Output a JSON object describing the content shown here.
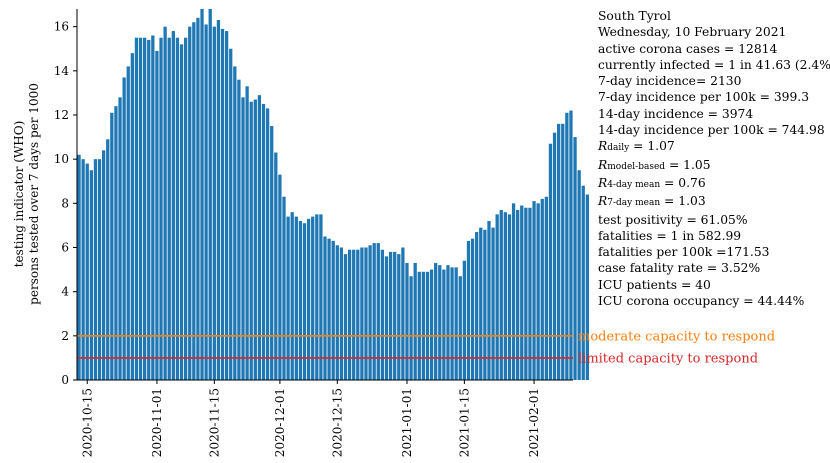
{
  "chart_data": {
    "type": "bar",
    "ylabel_lines": [
      "testing indicator (WHO)",
      "persons tested over 7 days per 1000"
    ],
    "ylim": [
      0,
      16.8
    ],
    "yticks": [
      0,
      2,
      4,
      6,
      8,
      10,
      12,
      14,
      16
    ],
    "x_start": "2020-10-13",
    "x_end": "2021-02-10",
    "xticks": [
      "2020-10-15",
      "2020-11-01",
      "2020-11-15",
      "2020-12-01",
      "2020-12-15",
      "2021-01-01",
      "2021-01-15",
      "2021-02-01"
    ],
    "bar_color": "#1f77b4",
    "values": [
      10.2,
      10.0,
      9.8,
      9.5,
      10.0,
      10.0,
      10.4,
      10.9,
      12.1,
      12.4,
      12.8,
      13.7,
      14.2,
      14.8,
      15.5,
      15.5,
      15.5,
      15.4,
      15.6,
      14.9,
      15.5,
      16.0,
      15.5,
      15.8,
      15.5,
      15.2,
      15.5,
      16.0,
      16.2,
      16.4,
      16.9,
      16.1,
      16.9,
      16.0,
      16.3,
      15.9,
      15.8,
      15.0,
      14.2,
      13.6,
      12.8,
      13.3,
      12.6,
      12.7,
      12.9,
      12.5,
      12.3,
      11.5,
      10.3,
      9.3,
      8.3,
      7.4,
      7.6,
      7.4,
      7.2,
      7.1,
      7.3,
      7.4,
      7.5,
      7.5,
      6.5,
      6.4,
      6.3,
      6.1,
      6.0,
      5.7,
      5.9,
      5.9,
      5.9,
      6.0,
      6.0,
      6.1,
      6.2,
      6.2,
      5.9,
      5.6,
      5.8,
      5.8,
      5.7,
      6.0,
      5.3,
      4.7,
      5.3,
      4.9,
      4.9,
      4.9,
      5.0,
      5.3,
      5.2,
      5.0,
      5.2,
      5.1,
      5.1,
      4.7,
      5.4,
      6.3,
      6.4,
      6.7,
      6.9,
      6.8,
      7.2,
      6.9,
      7.5,
      7.7,
      7.6,
      7.5,
      8.0,
      7.7,
      7.9,
      7.8,
      7.8,
      8.1,
      8.0,
      8.2,
      8.3,
      10.7,
      11.2,
      11.6,
      11.6,
      12.1,
      12.2,
      11.0,
      9.5,
      8.8,
      8.4
    ],
    "reference_lines": [
      {
        "value": 2,
        "label": "moderate capacity to respond",
        "color": "#ff7f0e"
      },
      {
        "value": 1,
        "label": "limited capacity to respond",
        "color": "#d62728"
      }
    ]
  },
  "info": {
    "region": "South Tyrol",
    "date": "Wednesday, 10 February 2021",
    "active_cases": "active corona cases = 12814",
    "currently_infected": "currently infected = 1 in 41.63 (2.4%)",
    "incidence_7d": "7-day incidence= 2130",
    "incidence_7d_100k": "7-day incidence per 100k = 399.3",
    "incidence_14d": "14-day incidence = 3974",
    "incidence_14d_100k": "14-day incidence per 100k = 744.98",
    "r_daily": {
      "symbol": "R",
      "sub": "daily",
      "value": " = 1.07"
    },
    "r_model": {
      "symbol": "R",
      "sub": "model-based",
      "value": " = 1.05"
    },
    "r_4day": {
      "symbol": "R",
      "sub": "4-day mean",
      "value": " = 0.76"
    },
    "r_7day": {
      "symbol": "R",
      "sub": "7-day mean",
      "value": " = 1.03"
    },
    "test_positivity": "test positivity = 61.05%",
    "fatalities": "fatalities = 1 in 582.99",
    "fatalities_100k": "fatalities per 100k =171.53",
    "case_fatality": "case fatality rate = 3.52%",
    "icu_patients": "ICU patients = 40",
    "icu_occupancy": "ICU corona occupancy = 44.44%"
  }
}
